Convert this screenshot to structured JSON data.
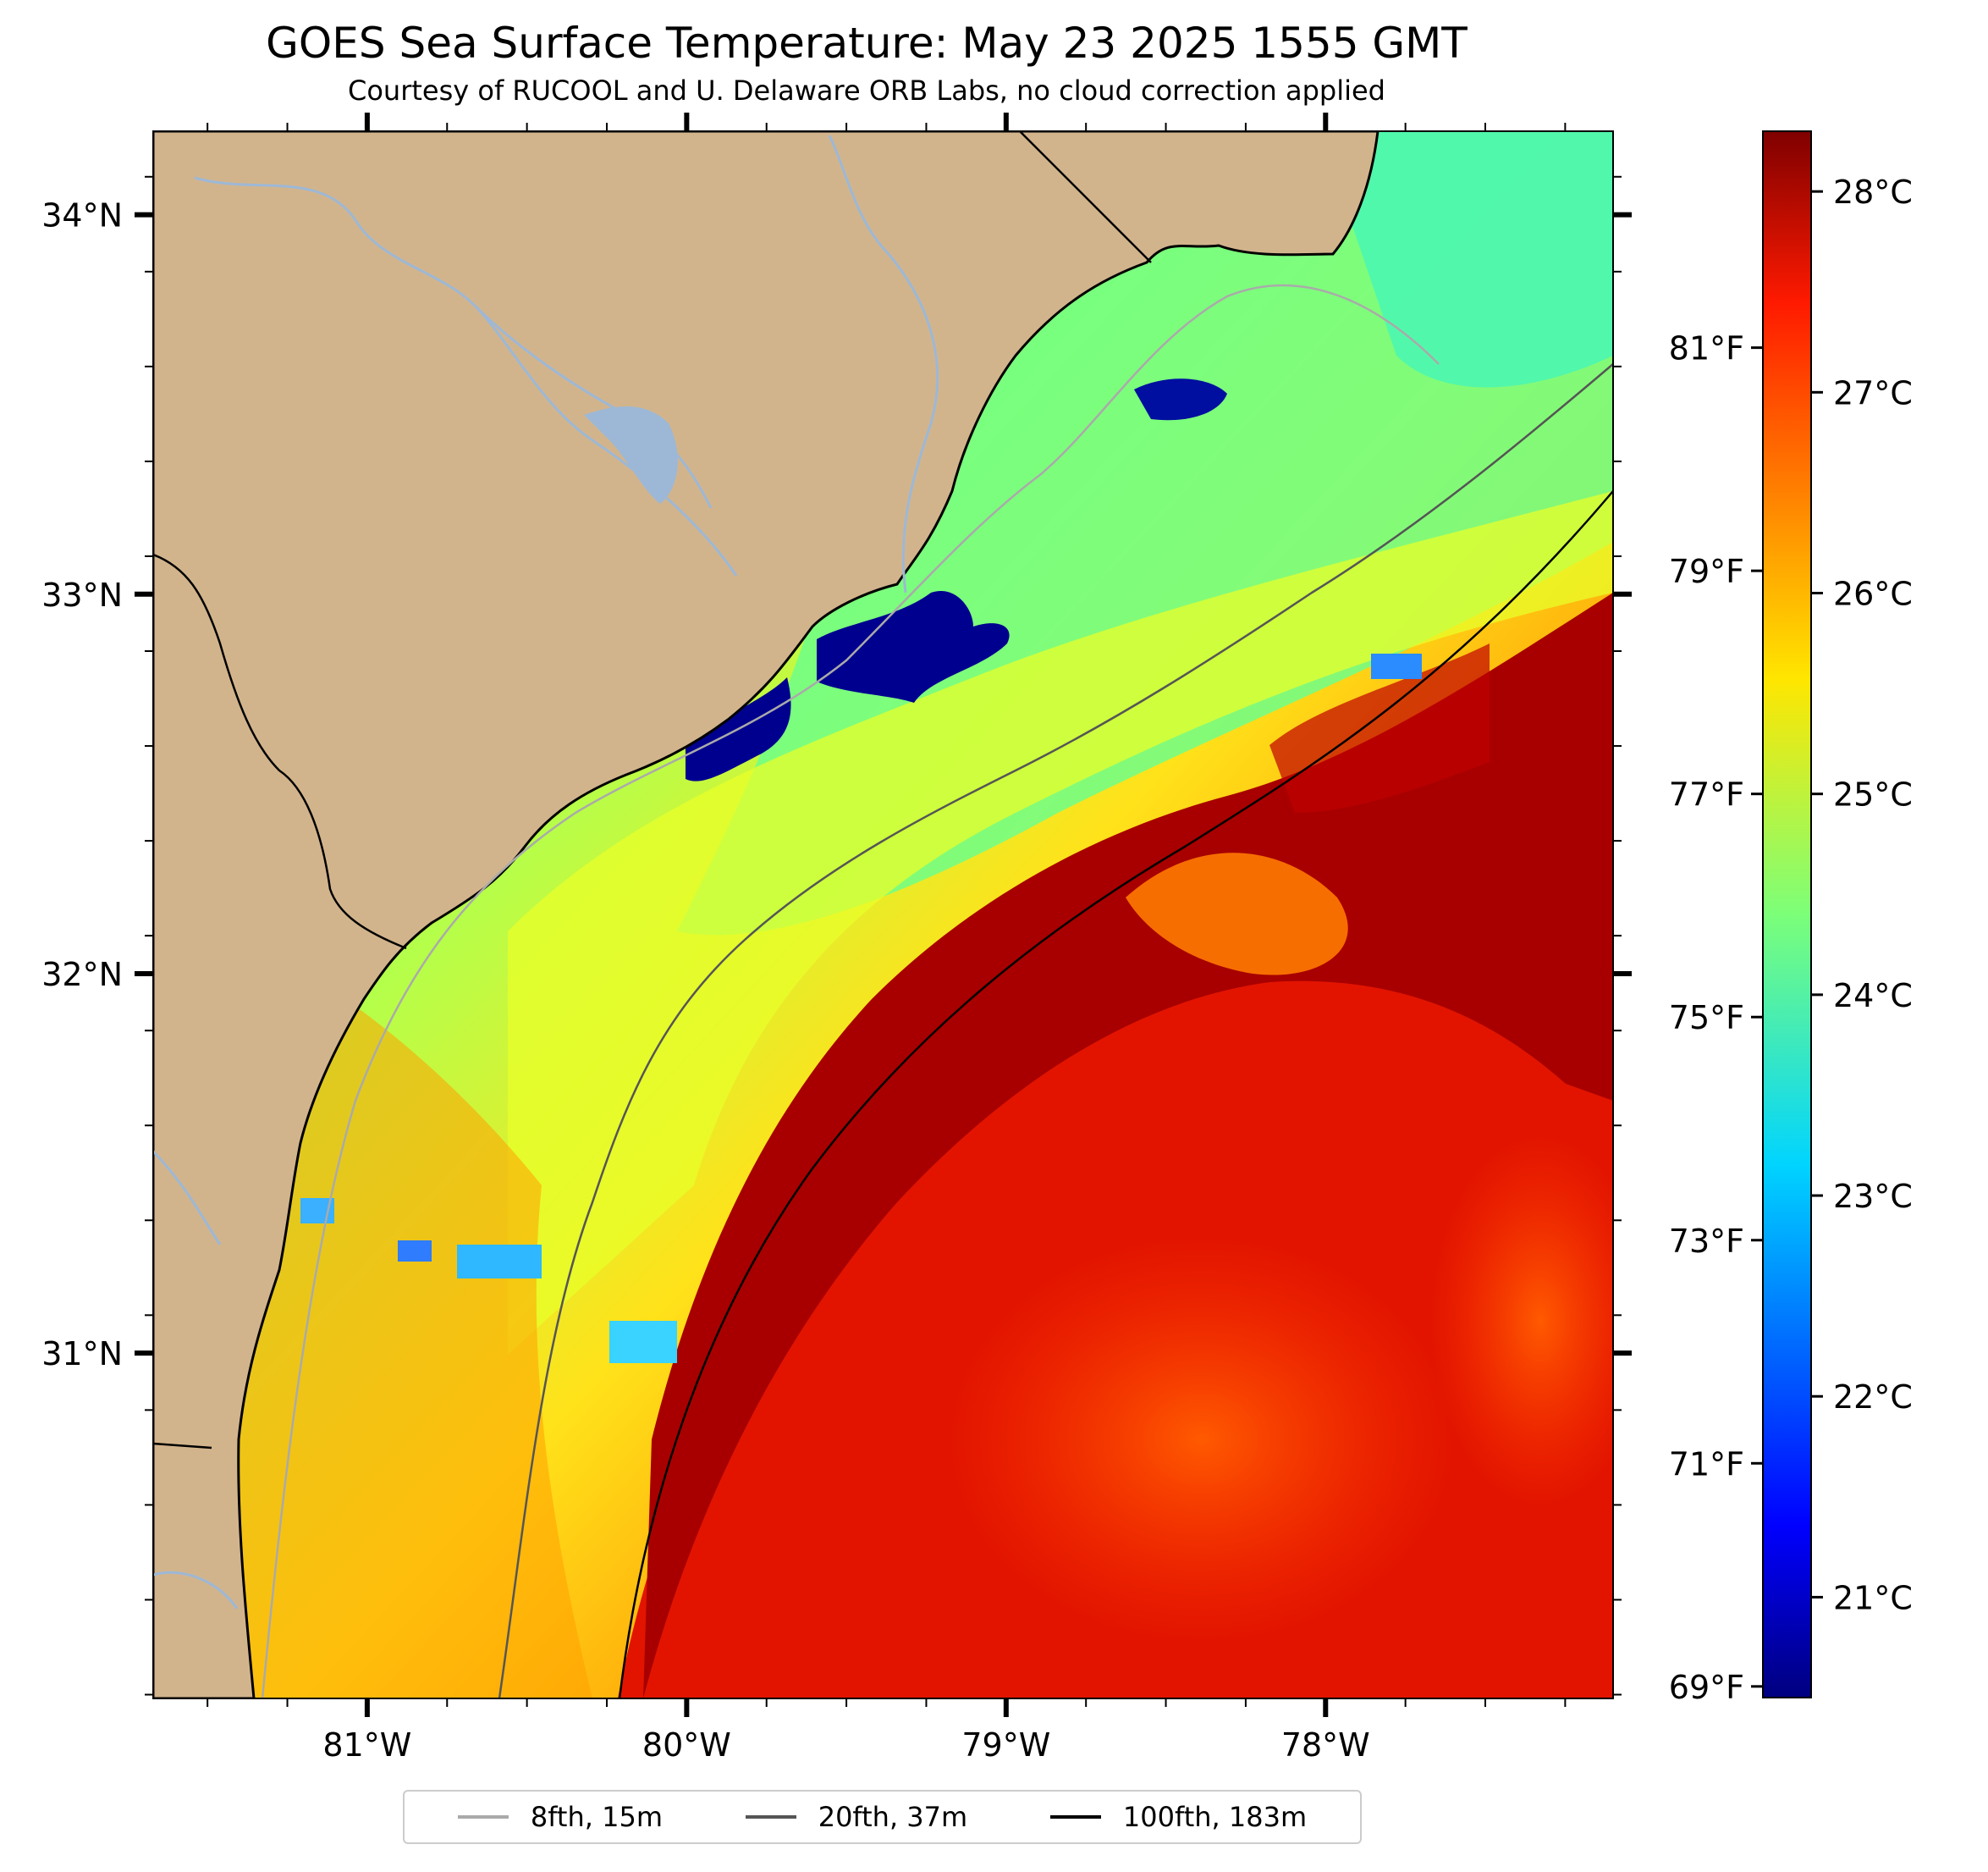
{
  "title": "GOES Sea Surface Temperature: May 23 2025 1555 GMT",
  "subtitle": "Courtesy of RUCOOL and U. Delaware ORB Labs, no cloud correction applied",
  "map": {
    "extent": {
      "lon_min": -81.67,
      "lon_max": -77.1,
      "lat_min": 30.09,
      "lat_max": 34.22
    },
    "land_color": "#d2b48c",
    "river_color": "#9db8d6",
    "lat_labels": [
      {
        "lat": 34,
        "label": "34°N"
      },
      {
        "lat": 33,
        "label": "33°N"
      },
      {
        "lat": 32,
        "label": "32°N"
      },
      {
        "lat": 31,
        "label": "31°N"
      }
    ],
    "lon_labels": [
      {
        "lon": -81,
        "label": "81°W"
      },
      {
        "lon": -80,
        "label": "80°W"
      },
      {
        "lon": -79,
        "label": "79°W"
      },
      {
        "lon": -78,
        "label": "78°W"
      }
    ]
  },
  "colorbar": {
    "colormap": "jet",
    "celsius_range": [
      20.5,
      28.3
    ],
    "celsius_labels": [
      "28°C",
      "27°C",
      "26°C",
      "25°C",
      "24°C",
      "23°C",
      "22°C",
      "21°C"
    ],
    "celsius_values": [
      28,
      27,
      26,
      25,
      24,
      23,
      22,
      21
    ],
    "fahrenheit_labels": [
      "81°F",
      "79°F",
      "77°F",
      "75°F",
      "73°F",
      "71°F",
      "69°F"
    ],
    "fahrenheit_values": [
      81,
      79,
      77,
      75,
      73,
      71,
      69
    ]
  },
  "legend": [
    {
      "label": "8fth, 15m",
      "color": "#aaaaaa"
    },
    {
      "label": "20fth, 37m",
      "color": "#555555"
    },
    {
      "label": "100fth, 183m",
      "color": "#000000"
    }
  ]
}
